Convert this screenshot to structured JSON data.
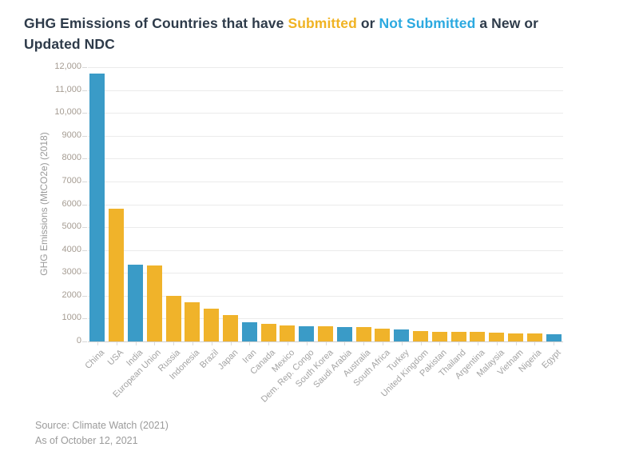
{
  "title": {
    "line1_pre": "GHG Emissions of Countries that have ",
    "submitted": "Submitted",
    "line1_mid": " or ",
    "not_submitted": "Not Submitted",
    "line1_post": " a New or",
    "line2": "Updated NDC"
  },
  "y_axis": {
    "label": "GHG Emissions (MtCO2e) (2018)"
  },
  "source": {
    "line1": "Source: Climate Watch (2021)",
    "line2": "As of October 12, 2021"
  },
  "colors": {
    "submitted_yellow": "#F0B32A",
    "not_submitted_blue": "#3A9BC7",
    "title_submitted": "#F0B323",
    "title_not_submitted": "#2BA9E0",
    "title_text": "#2E3B4A",
    "grid": "#EBEBEB",
    "axis_line": "#CFCFCF",
    "y_tick_label": "#A59C92",
    "country_label": "#A3A3A3",
    "source_text": "#9B9B9B"
  },
  "chart_data": {
    "type": "bar",
    "title": "GHG Emissions of Countries that have Submitted or Not Submitted a New or Updated NDC",
    "xlabel": "",
    "ylabel": "GHG Emissions (MtCO2e) (2018)",
    "ylim": [
      0,
      12000
    ],
    "grid": true,
    "legend_position": "in-title",
    "y_tick_labels": [
      "0",
      "1000",
      "2000",
      "3000",
      "4000",
      "5000",
      "6000",
      "7000",
      "8000",
      "9000",
      "10,000",
      "11,000",
      "12,000"
    ],
    "categories": [
      "China",
      "USA",
      "India",
      "European Union",
      "Russia",
      "Indonesia",
      "Brazil",
      "Japan",
      "Iran",
      "Canada",
      "Mexico",
      "Dem. Rep. Congo",
      "South Korea",
      "Saudi Arabia",
      "Australia",
      "South Africa",
      "Turkey",
      "United Kingdom",
      "Pakistan",
      "Thailand",
      "Argentina",
      "Malaysia",
      "Vietnam",
      "Nigeria",
      "Egypt"
    ],
    "values": [
      11706,
      5794,
      3347,
      3334,
      1993,
      1704,
      1421,
      1155,
      828,
      763,
      717,
      678,
      673,
      638,
      620,
      553,
      520,
      466,
      437,
      431,
      407,
      401,
      364,
      355,
      329
    ],
    "statuses": [
      "not_submitted",
      "submitted",
      "not_submitted",
      "submitted",
      "submitted",
      "submitted",
      "submitted",
      "submitted",
      "not_submitted",
      "submitted",
      "submitted",
      "not_submitted",
      "submitted",
      "not_submitted",
      "submitted",
      "submitted",
      "not_submitted",
      "submitted",
      "submitted",
      "submitted",
      "submitted",
      "submitted",
      "submitted",
      "submitted",
      "not_submitted"
    ],
    "series": [
      {
        "name": "Submitted",
        "color": "#F0B32A"
      },
      {
        "name": "Not Submitted",
        "color": "#3A9BC7"
      }
    ]
  }
}
